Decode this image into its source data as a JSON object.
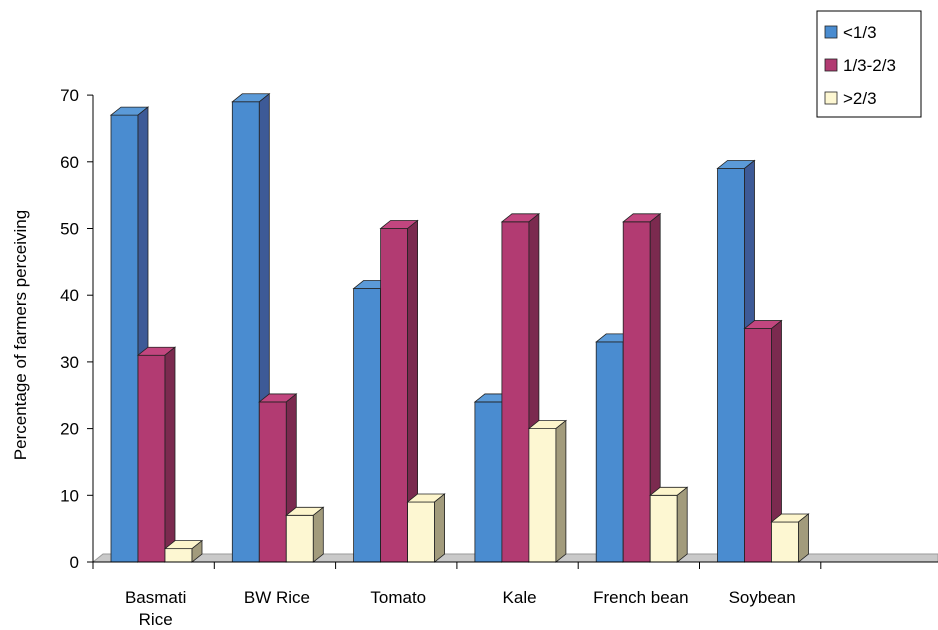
{
  "chart_data": {
    "type": "bar",
    "title": "",
    "xlabel": "",
    "ylabel": "Percentage of farmers perceiving",
    "ylim": [
      0,
      70
    ],
    "yticks": [
      0,
      10,
      20,
      30,
      40,
      50,
      60,
      70
    ],
    "categories": [
      [
        "Basmati",
        "Rice"
      ],
      [
        "BW Rice"
      ],
      [
        "Tomato"
      ],
      [
        "Kale"
      ],
      [
        "French bean"
      ],
      [
        "Soybean"
      ]
    ],
    "series": [
      {
        "name": "<1/3",
        "values": [
          67,
          69,
          41,
          24,
          33,
          59
        ],
        "color": "#4a8cd0",
        "side": "#3d5a97",
        "top": "#5b9ad8"
      },
      {
        "name": "1/3-2/3",
        "values": [
          31,
          24,
          50,
          51,
          51,
          35
        ],
        "color": "#b23b72",
        "side": "#7b2a4f",
        "top": "#c2467f"
      },
      {
        "name": ">2/3",
        "values": [
          2,
          7,
          9,
          20,
          10,
          6
        ],
        "color": "#fdf7d2",
        "side": "#a29b7c",
        "top": "#fdf5cc"
      }
    ],
    "grid": false,
    "legend_position": "top-right"
  }
}
